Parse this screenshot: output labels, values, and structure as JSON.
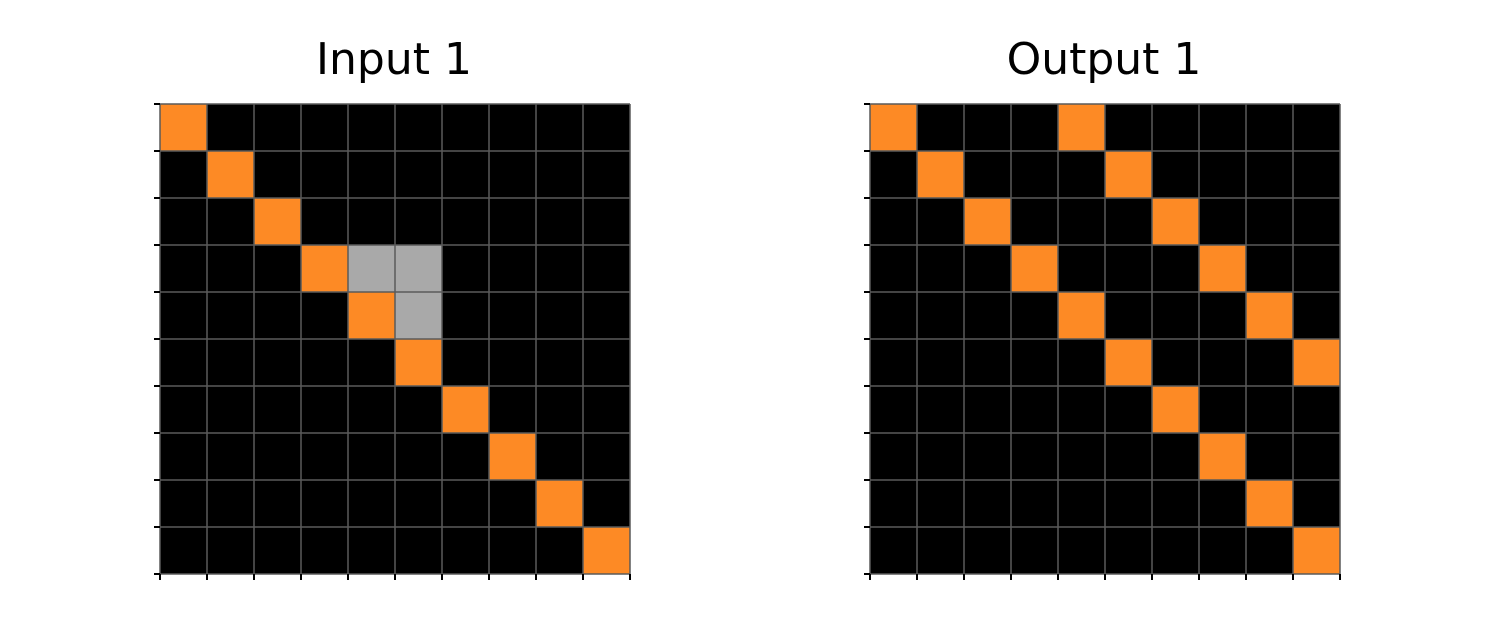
{
  "colors": {
    "0": "#000000",
    "5": "#a9a9a9",
    "7": "#fd8a25",
    "gridline": "#5a5a5a",
    "tick": "#000000"
  },
  "panels": [
    {
      "title": "Input 1",
      "grid": [
        [
          7,
          0,
          0,
          0,
          0,
          0,
          0,
          0,
          0,
          0
        ],
        [
          0,
          7,
          0,
          0,
          0,
          0,
          0,
          0,
          0,
          0
        ],
        [
          0,
          0,
          7,
          0,
          0,
          0,
          0,
          0,
          0,
          0
        ],
        [
          0,
          0,
          0,
          7,
          5,
          5,
          0,
          0,
          0,
          0
        ],
        [
          0,
          0,
          0,
          0,
          7,
          5,
          0,
          0,
          0,
          0
        ],
        [
          0,
          0,
          0,
          0,
          0,
          7,
          0,
          0,
          0,
          0
        ],
        [
          0,
          0,
          0,
          0,
          0,
          0,
          7,
          0,
          0,
          0
        ],
        [
          0,
          0,
          0,
          0,
          0,
          0,
          0,
          7,
          0,
          0
        ],
        [
          0,
          0,
          0,
          0,
          0,
          0,
          0,
          0,
          7,
          0
        ],
        [
          0,
          0,
          0,
          0,
          0,
          0,
          0,
          0,
          0,
          7
        ]
      ]
    },
    {
      "title": "Output 1",
      "grid": [
        [
          7,
          0,
          0,
          0,
          7,
          0,
          0,
          0,
          0,
          0
        ],
        [
          0,
          7,
          0,
          0,
          0,
          7,
          0,
          0,
          0,
          0
        ],
        [
          0,
          0,
          7,
          0,
          0,
          0,
          7,
          0,
          0,
          0
        ],
        [
          0,
          0,
          0,
          7,
          0,
          0,
          0,
          7,
          0,
          0
        ],
        [
          0,
          0,
          0,
          0,
          7,
          0,
          0,
          0,
          7,
          0
        ],
        [
          0,
          0,
          0,
          0,
          0,
          7,
          0,
          0,
          0,
          7
        ],
        [
          0,
          0,
          0,
          0,
          0,
          0,
          7,
          0,
          0,
          0
        ],
        [
          0,
          0,
          0,
          0,
          0,
          0,
          0,
          7,
          0,
          0
        ],
        [
          0,
          0,
          0,
          0,
          0,
          0,
          0,
          0,
          7,
          0
        ],
        [
          0,
          0,
          0,
          0,
          0,
          0,
          0,
          0,
          0,
          7
        ]
      ]
    }
  ]
}
